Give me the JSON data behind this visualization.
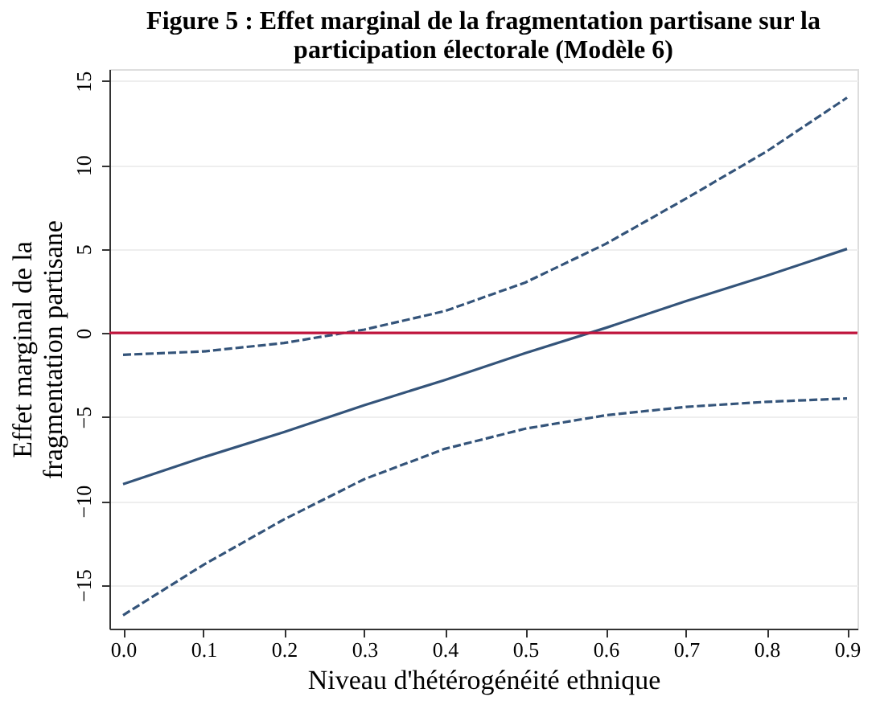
{
  "chart_data": {
    "type": "line",
    "title": [
      "Figure 5 : Effet marginal de la fragmentation partisane sur la",
      "participation électorale (Modèle 6)"
    ],
    "xlabel": "Niveau d'hétérogénéité ethnique",
    "ylabel": [
      "Effet marginal de la",
      "fragmentation partisane"
    ],
    "x": [
      0.0,
      0.1,
      0.2,
      0.3,
      0.4,
      0.5,
      0.6,
      0.7,
      0.8,
      0.9
    ],
    "series": [
      {
        "color": "#34547a",
        "line_style": "solid",
        "values": [
          -9.0,
          -7.4,
          -5.9,
          -4.3,
          -2.8,
          -1.2,
          0.3,
          1.9,
          3.4,
          5.0
        ]
      },
      {
        "color": "#34547a",
        "line_style": "dashed",
        "values": [
          -1.3,
          -1.1,
          -0.6,
          0.2,
          1.3,
          3.0,
          5.3,
          8.0,
          10.8,
          14.0
        ]
      },
      {
        "color": "#34547a",
        "line_style": "dashed",
        "values": [
          -16.8,
          -13.8,
          -11.1,
          -8.7,
          -6.9,
          -5.7,
          -4.9,
          -4.4,
          -4.1,
          -3.9
        ]
      }
    ],
    "xlim": [
      -0.017,
      0.913
    ],
    "xticks": [
      {
        "value": 0.0,
        "label": "0.0"
      },
      0.1,
      0.2,
      0.3,
      0.4,
      0.5,
      0.6,
      0.7,
      0.8,
      0.9
    ],
    "ylim": [
      -17.6,
      15.7
    ],
    "yticks": [
      -15,
      -10,
      -5,
      0,
      5,
      10,
      15
    ],
    "ref_lines": [
      {
        "axis": "y",
        "value": 0,
        "color": "#c0143c"
      }
    ],
    "grid": "y",
    "legend": false
  }
}
